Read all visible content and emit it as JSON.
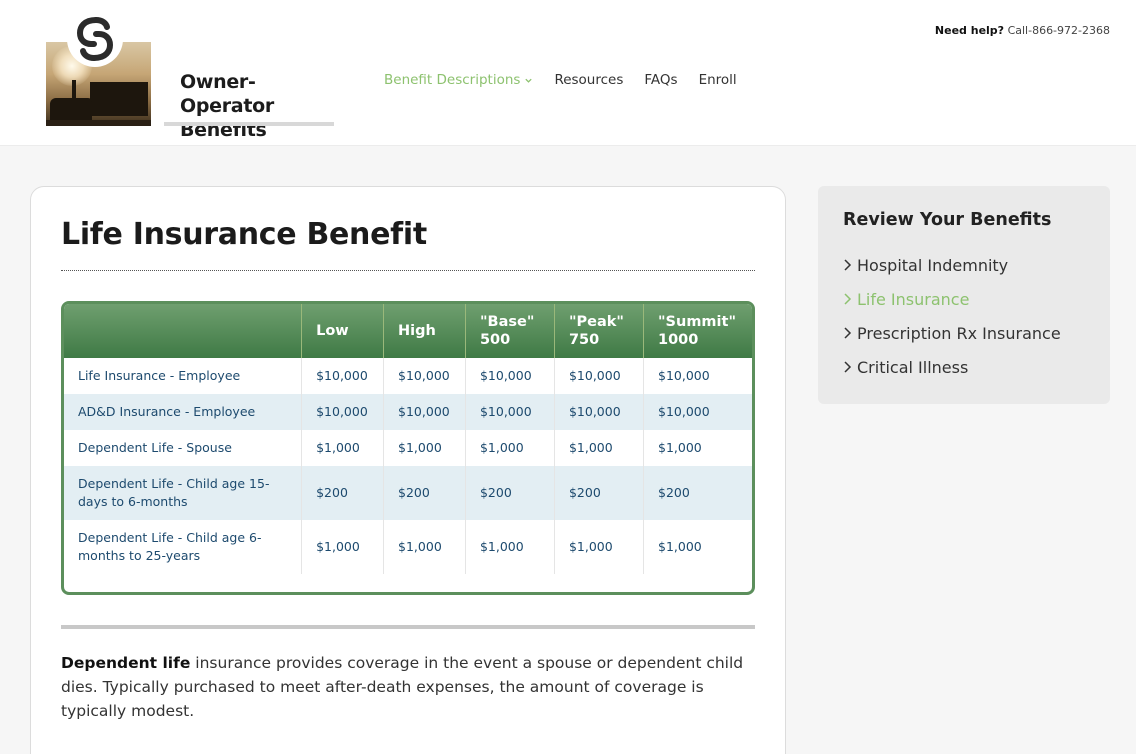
{
  "brand": {
    "name_line1": "Owner-Operator",
    "name_line2": "Benefits"
  },
  "nav": {
    "items": [
      {
        "label": "Benefit Descriptions",
        "active": true,
        "dropdown": true
      },
      {
        "label": "Resources"
      },
      {
        "label": "FAQs"
      },
      {
        "label": "Enroll"
      }
    ]
  },
  "help": {
    "label": "Need help?",
    "phone": "Call-866-972-2368"
  },
  "main": {
    "title": "Life Insurance Benefit",
    "table": {
      "headers": [
        "",
        "Low",
        "High",
        "\"Base\" 500",
        "\"Peak\" 750",
        "\"Summit\" 1000"
      ],
      "rows": [
        [
          "Life Insurance - Employee",
          "$10,000",
          "$10,000",
          "$10,000",
          "$10,000",
          "$10,000"
        ],
        [
          "AD&D Insurance - Employee",
          "$10,000",
          "$10,000",
          "$10,000",
          "$10,000",
          "$10,000"
        ],
        [
          "Dependent Life - Spouse",
          "$1,000",
          "$1,000",
          "$1,000",
          "$1,000",
          "$1,000"
        ],
        [
          "Dependent Life - Child age 15-days to 6-months",
          "$200",
          "$200",
          "$200",
          "$200",
          "$200"
        ],
        [
          "Dependent Life - Child age 6-months to 25-years",
          "$1,000",
          "$1,000",
          "$1,000",
          "$1,000",
          "$1,000"
        ]
      ]
    },
    "description": {
      "bold": "Dependent life",
      "text": " insurance provides coverage in the event a spouse or dependent child dies. Typically purchased to meet after-death expenses, the amount of coverage is typically modest."
    }
  },
  "sidebar": {
    "title": "Review Your Benefits",
    "items": [
      {
        "label": "Hospital Indemnity"
      },
      {
        "label": "Life Insurance",
        "active": true
      },
      {
        "label": "Prescription Rx Insurance"
      },
      {
        "label": "Critical Illness"
      }
    ]
  },
  "colors": {
    "accent_green": "#8dc26f",
    "table_header": "#4a8050",
    "row_alt": "#e3eef3",
    "cell_text": "#1d4a6e"
  }
}
